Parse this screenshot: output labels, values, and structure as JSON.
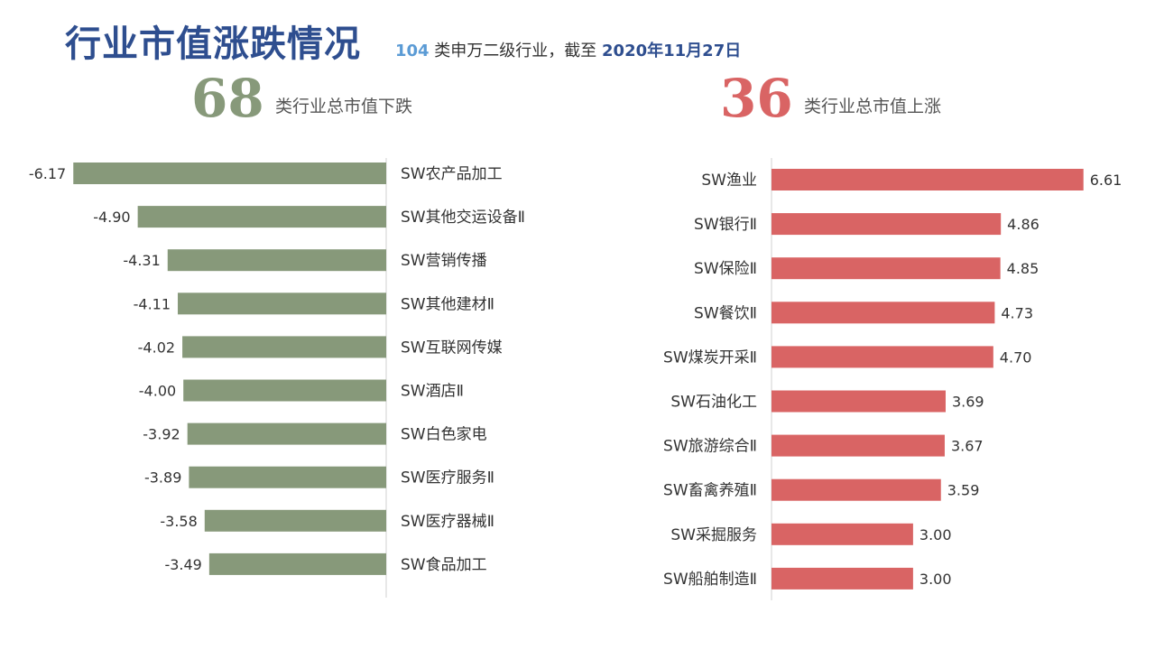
{
  "header": {
    "title": "行业市值涨跌情况",
    "count": "104",
    "subtitle_mid": " 类申万二级行业，截至 ",
    "date": "2020年11月27日"
  },
  "summary": {
    "down_count": "68",
    "down_label": "类行业总市值下跌",
    "up_count": "36",
    "up_label": "类行业总市值上涨"
  },
  "colors": {
    "down": "#87997A",
    "up": "#D96464",
    "title": "#2E4E8F",
    "count": "#5B9BD5"
  },
  "chart_data": [
    {
      "type": "bar",
      "orientation": "horizontal",
      "categories": [
        "SW农产品加工",
        "SW其他交运设备Ⅱ",
        "SW营销传播",
        "SW其他建材Ⅱ",
        "SW互联网传媒",
        "SW酒店Ⅱ",
        "SW白色家电",
        "SW医疗服务Ⅱ",
        "SW医疗器械Ⅱ",
        "SW食品加工"
      ],
      "values": [
        -6.17,
        -4.9,
        -4.31,
        -4.11,
        -4.02,
        -4.0,
        -3.92,
        -3.89,
        -3.58,
        -3.49
      ],
      "data_labels": [
        "-6.17",
        "-4.90",
        "-4.31",
        "-4.11",
        "-4.02",
        "-4.00",
        "-3.92",
        "-3.89",
        "-3.58",
        "-3.49"
      ],
      "color": "#87997A"
    },
    {
      "type": "bar",
      "orientation": "horizontal",
      "categories": [
        "SW渔业",
        "SW银行Ⅱ",
        "SW保险Ⅱ",
        "SW餐饮Ⅱ",
        "SW煤炭开采Ⅱ",
        "SW石油化工",
        "SW旅游综合Ⅱ",
        "SW畜禽养殖Ⅱ",
        "SW采掘服务",
        "SW船舶制造Ⅱ"
      ],
      "values": [
        6.61,
        4.86,
        4.85,
        4.73,
        4.7,
        3.69,
        3.67,
        3.59,
        3.0,
        3.0
      ],
      "data_labels": [
        "6.61",
        "4.86",
        "4.85",
        "4.73",
        "4.70",
        "3.69",
        "3.67",
        "3.59",
        "3.00",
        "3.00"
      ],
      "color": "#D96464"
    }
  ]
}
